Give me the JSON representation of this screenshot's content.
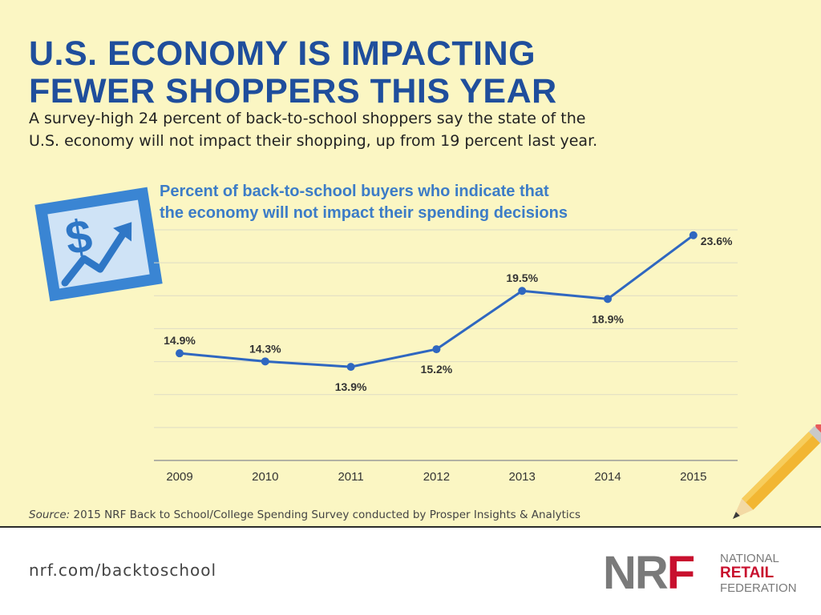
{
  "header": {
    "title_line1": "U.S. ECONOMY IS IMPACTING",
    "title_line2": "FEWER SHOPPERS THIS YEAR",
    "subtitle_line1": "A survey-high 24 percent of back-to-school shoppers say the state of the",
    "subtitle_line2": "U.S. economy will not impact their shopping, up from 19 percent last year."
  },
  "chart_data": {
    "type": "line",
    "title_line1": "Percent of back-to-school buyers who indicate that",
    "title_line2": "the economy will not impact their spending decisions",
    "categories": [
      "2009",
      "2010",
      "2011",
      "2012",
      "2013",
      "2014",
      "2015"
    ],
    "series": [
      {
        "values": [
          14.9,
          14.3,
          13.9,
          15.2,
          19.5,
          18.9,
          23.6
        ]
      }
    ],
    "data_labels": [
      "14.9%",
      "14.3%",
      "13.9%",
      "15.2%",
      "19.5%",
      "18.9%",
      "23.6%"
    ],
    "xlabel": "",
    "ylabel": "",
    "ylim": [
      7,
      24
    ],
    "grid": true,
    "line_color": "#2f67c0"
  },
  "source": {
    "label": "Source:",
    "text": " 2015 NRF Back to School/College Spending Survey conducted by Prosper Insights & Analytics"
  },
  "footer": {
    "url": "nrf.com/backtoschool",
    "logo_mark_gray": "NR",
    "logo_mark_red": "F",
    "logo_line1": "NATIONAL",
    "logo_line2": "RETAIL",
    "logo_line3": "FEDERATION"
  },
  "icons": {
    "money": "dollar-growth-icon",
    "pencil": "pencil-icon"
  }
}
